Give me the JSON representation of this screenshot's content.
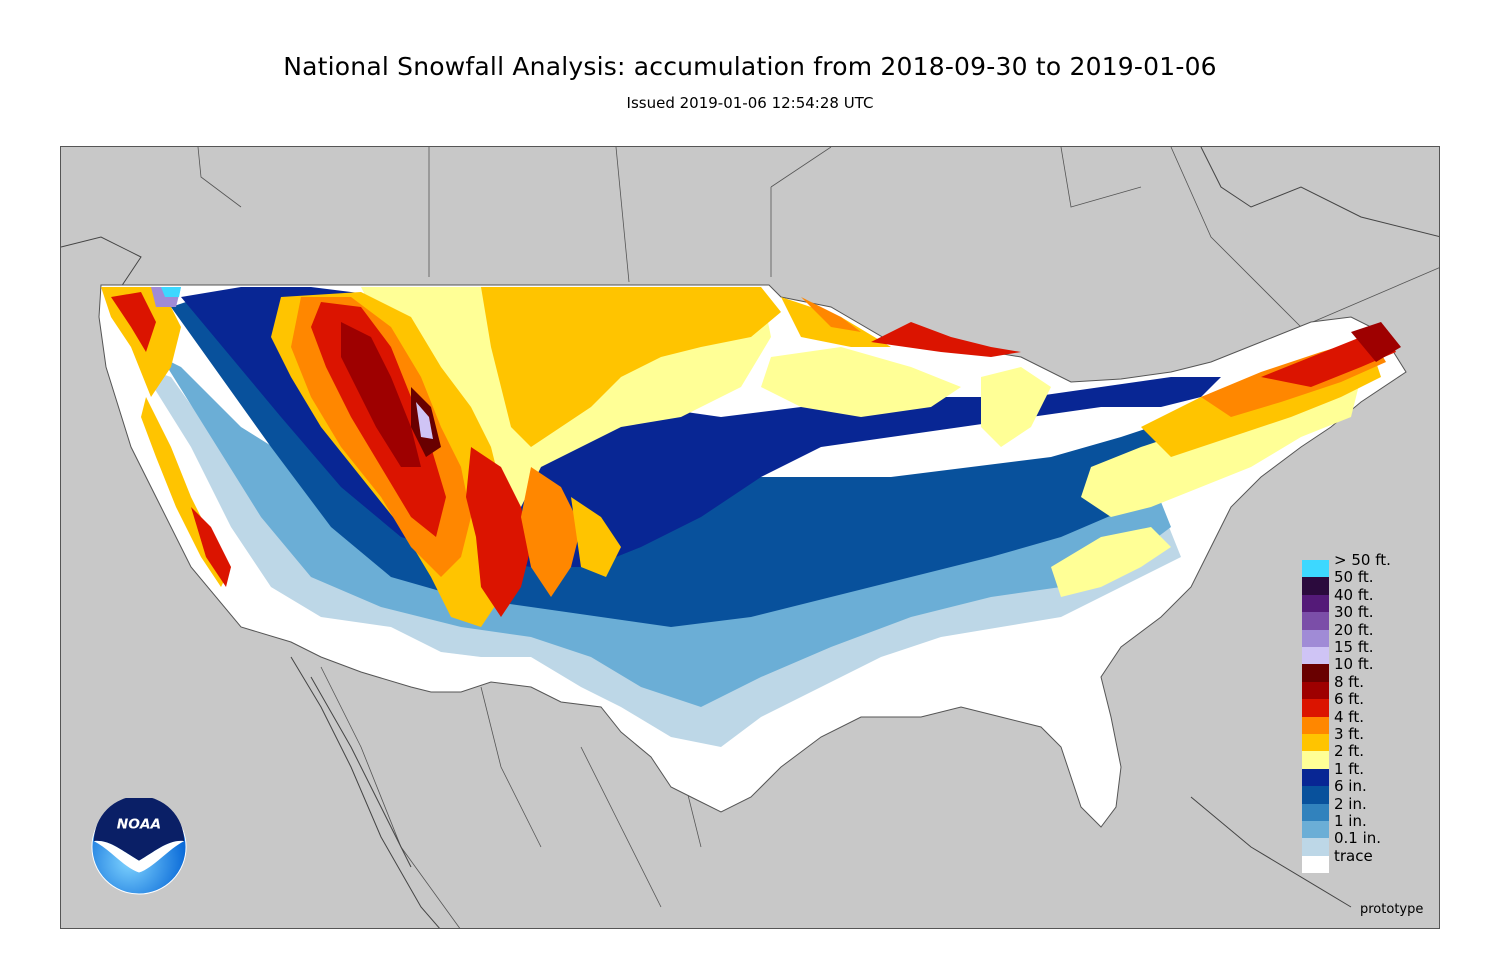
{
  "title": "National Snowfall Analysis: accumulation from 2018-09-30 to 2019-01-06",
  "subtitle": "Issued 2019-01-06 12:54:28 UTC",
  "watermark": "prototype",
  "logo": {
    "text": "NOAA",
    "icon": "noaa-logo-icon"
  },
  "colors": {
    "ocean": "#c8c8c8",
    "trace": "#ffffff",
    "tenth_in": "#bdd7e7",
    "one_in": "#6baed6",
    "two_in": "#3182bd",
    "six_in": "#08519c",
    "one_ft": "#082694",
    "two_ft": "#ffff96",
    "three_ft": "#ffc400",
    "four_ft": "#ff8700",
    "six_ft": "#db1400",
    "eight_ft": "#9e0000",
    "ten_ft": "#690000"
  },
  "legend": [
    {
      "label": "> 50 ft.",
      "color": "#3dd8ff"
    },
    {
      "label": "50 ft.",
      "color": "#2b0a3d"
    },
    {
      "label": "40 ft.",
      "color": "#541a78"
    },
    {
      "label": "30 ft.",
      "color": "#7b4ea8"
    },
    {
      "label": "20 ft.",
      "color": "#a08bd6"
    },
    {
      "label": "15 ft.",
      "color": "#cfc4f5"
    },
    {
      "label": "10 ft.",
      "color": "#690000"
    },
    {
      "label": "8 ft.",
      "color": "#9e0000"
    },
    {
      "label": "6 ft.",
      "color": "#db1400"
    },
    {
      "label": "4 ft.",
      "color": "#ff8700"
    },
    {
      "label": "3 ft.",
      "color": "#ffc400"
    },
    {
      "label": "2 ft.",
      "color": "#ffff96"
    },
    {
      "label": "1 ft.",
      "color": "#082694"
    },
    {
      "label": "6 in.",
      "color": "#08519c"
    },
    {
      "label": "2 in.",
      "color": "#3182bd"
    },
    {
      "label": "1 in.",
      "color": "#6baed6"
    },
    {
      "label": "0.1 in.",
      "color": "#bdd7e7"
    },
    {
      "label": "trace",
      "color": "#ffffff"
    }
  ]
}
